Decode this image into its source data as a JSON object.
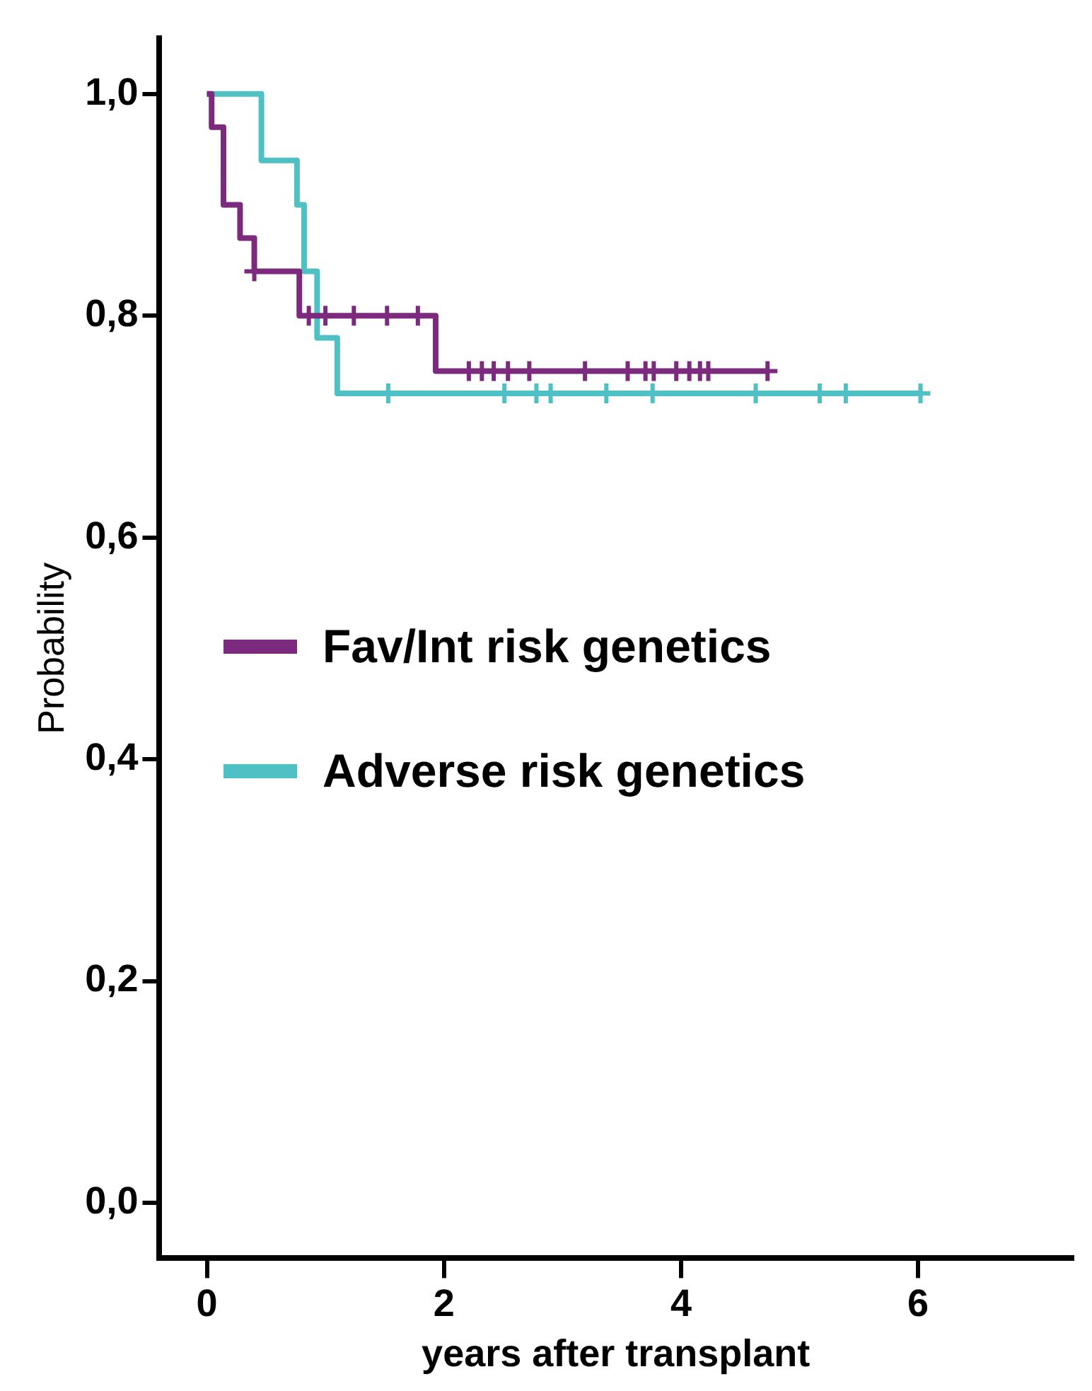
{
  "chart_data": {
    "type": "step",
    "xlabel": "years after transplant",
    "ylabel": "Probability",
    "xlim": [
      -0.4,
      7.3
    ],
    "ylim": [
      -0.05,
      1.05
    ],
    "xticks": [
      0,
      2,
      4,
      6
    ],
    "yticks": [
      {
        "value": 0,
        "label": "0,0"
      },
      {
        "value": 0.2,
        "label": "0,2"
      },
      {
        "value": 0.4,
        "label": "0,4"
      },
      {
        "value": 0.6,
        "label": "0,6"
      },
      {
        "value": 0.8,
        "label": "0,8"
      },
      {
        "value": 1,
        "label": "1,0"
      }
    ],
    "grid": false,
    "legend": "left",
    "line_style": "solid",
    "series": [
      {
        "name": "Fav/Int risk genetics",
        "color": "#7b2a7e",
        "x": [
          0,
          0.04,
          0.14,
          0.28,
          0.4,
          0.78,
          1.93,
          4.73
        ],
        "values": [
          1,
          0.97,
          0.9,
          0.87,
          0.84,
          0.8,
          0.75,
          0.75
        ]
      },
      {
        "name": "Adverse risk genetics",
        "color": "#4fc0c4",
        "x": [
          0,
          0.46,
          0.76,
          0.82,
          0.93,
          1.1,
          6.04
        ],
        "values": [
          1,
          0.94,
          0.9,
          0.84,
          0.78,
          0.73,
          0.73
        ]
      },
      {
        "type": "scatter",
        "marker": "cross",
        "color": "#7b2a7e",
        "x": [
          0.4,
          0.86,
          1.0,
          1.24,
          1.52,
          1.78,
          2.21,
          2.32,
          2.42,
          2.54,
          2.72,
          3.19,
          3.55,
          3.7,
          3.77,
          3.96,
          4.07,
          4.16,
          4.23,
          4.73
        ],
        "values": [
          0.84,
          0.8,
          0.8,
          0.8,
          0.8,
          0.8,
          0.75,
          0.75,
          0.75,
          0.75,
          0.75,
          0.75,
          0.75,
          0.75,
          0.75,
          0.75,
          0.75,
          0.75,
          0.75,
          0.75
        ]
      },
      {
        "type": "scatter",
        "marker": "cross",
        "color": "#4fc0c4",
        "x": [
          1.53,
          2.51,
          2.78,
          2.9,
          3.37,
          3.76,
          4.63,
          5.17,
          5.39,
          6.02
        ],
        "values": [
          0.73,
          0.73,
          0.73,
          0.73,
          0.73,
          0.73,
          0.73,
          0.73,
          0.73,
          0.73
        ]
      }
    ]
  }
}
